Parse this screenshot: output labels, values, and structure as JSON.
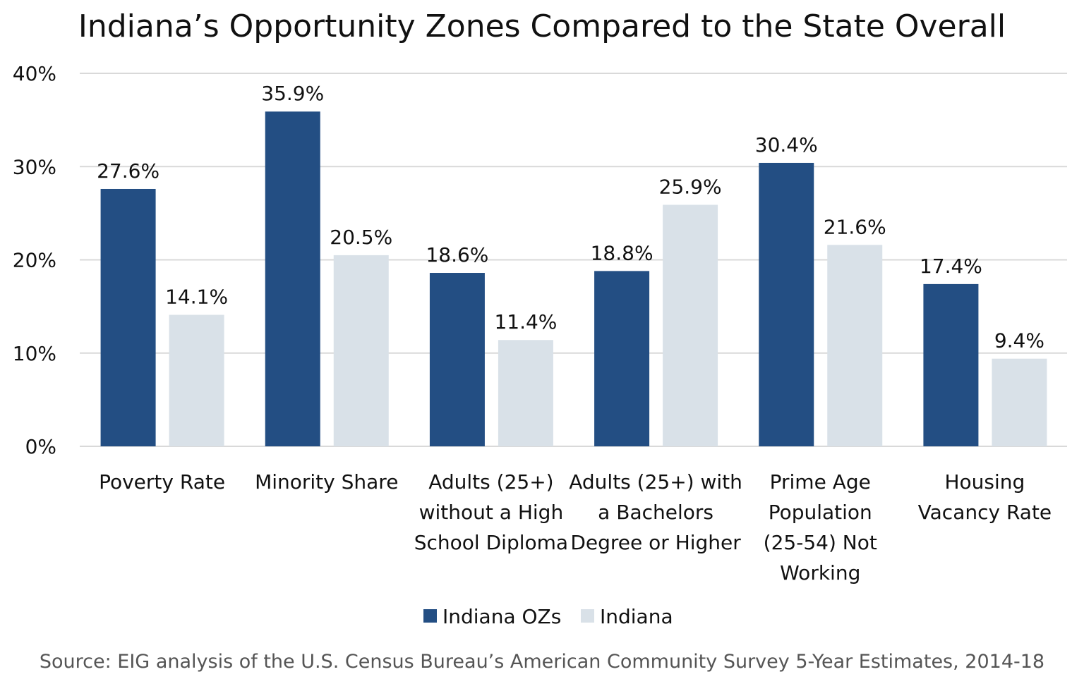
{
  "chart_data": {
    "type": "bar",
    "title": "Indiana’s Opportunity Zones Compared to the State Overall",
    "categories": [
      "Poverty Rate",
      "Minority Share",
      "Adults (25+)\nwithout a High\nSchool Diploma",
      "Adults (25+) with\na Bachelors\nDegree or Higher",
      "Prime Age\nPopulation\n(25-54)  Not\nWorking",
      "Housing\nVacancy Rate"
    ],
    "series": [
      {
        "name": "Indiana OZs",
        "color": "#234e83",
        "values": [
          27.6,
          35.9,
          18.6,
          18.8,
          30.4,
          17.4
        ],
        "labels": [
          "27.6%",
          "35.9%",
          "18.6%",
          "18.8%",
          "30.4%",
          "17.4%"
        ]
      },
      {
        "name": "Indiana",
        "color": "#d9e1e8",
        "values": [
          14.1,
          20.5,
          11.4,
          25.9,
          21.6,
          9.4
        ],
        "labels": [
          "14.1%",
          "20.5%",
          "11.4%",
          "25.9%",
          "21.6%",
          "9.4%"
        ]
      }
    ],
    "ylim": [
      0,
      40
    ],
    "yticks": [
      "0%",
      "10%",
      "20%",
      "30%",
      "40%"
    ],
    "grid": true,
    "legend": "bottom",
    "xlabel": "",
    "ylabel": ""
  },
  "source": "Source: EIG analysis of the U.S. Census Bureau’s American Community Survey 5-Year Estimates, 2014-18"
}
